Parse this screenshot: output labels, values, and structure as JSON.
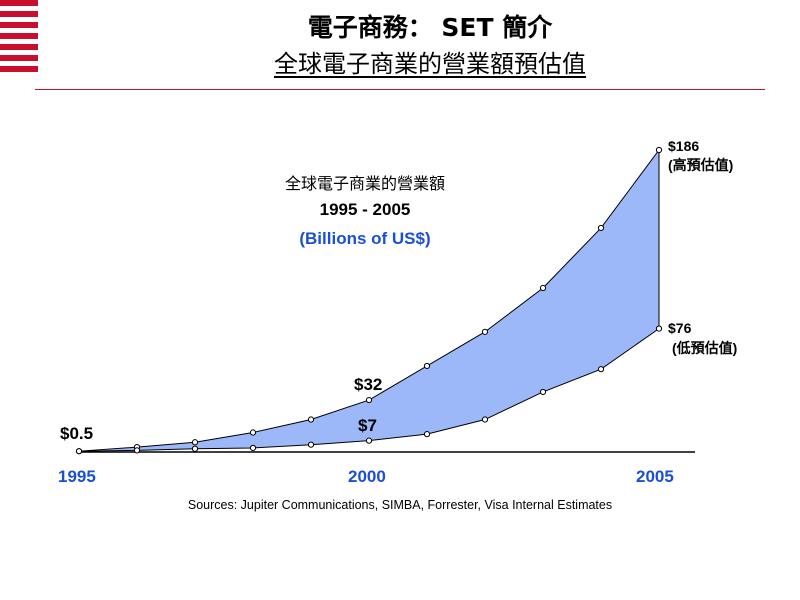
{
  "header": {
    "title": "電子商務： SET 簡介",
    "subtitle": "全球電子商業的營業額預估值"
  },
  "colors": {
    "stripe": "#c8102e",
    "fill": "#9db8f9",
    "accent": "#1a4fd6"
  },
  "chart_data": {
    "type": "area",
    "title": "全球電子商業的營業額",
    "subtitle": "1995 - 2005",
    "unit_label": "(Billions of US$)",
    "x": [
      1995,
      1996,
      1997,
      1998,
      1999,
      2000,
      2001,
      2002,
      2003,
      2004,
      2005
    ],
    "x_tick_labels": [
      "1995",
      "2000",
      "2005"
    ],
    "series": [
      {
        "values": [
          0.5,
          3,
          6,
          12,
          20,
          32,
          53,
          74,
          101,
          138,
          186
        ]
      },
      {
        "values": [
          0.5,
          1,
          2,
          2.5,
          4.5,
          7,
          11,
          20,
          37,
          51,
          76
        ]
      }
    ],
    "ylim": [
      0,
      186
    ],
    "annotations": [
      {
        "text": "$0.5"
      },
      {
        "text": "$32"
      },
      {
        "text": "$7"
      },
      {
        "text": "$186",
        "note": "(高預估值)"
      },
      {
        "text": "$76",
        "note": "(低預估值)"
      }
    ],
    "source": "Sources: Jupiter Communications, SIMBA, Forrester, Visa Internal Estimates"
  }
}
